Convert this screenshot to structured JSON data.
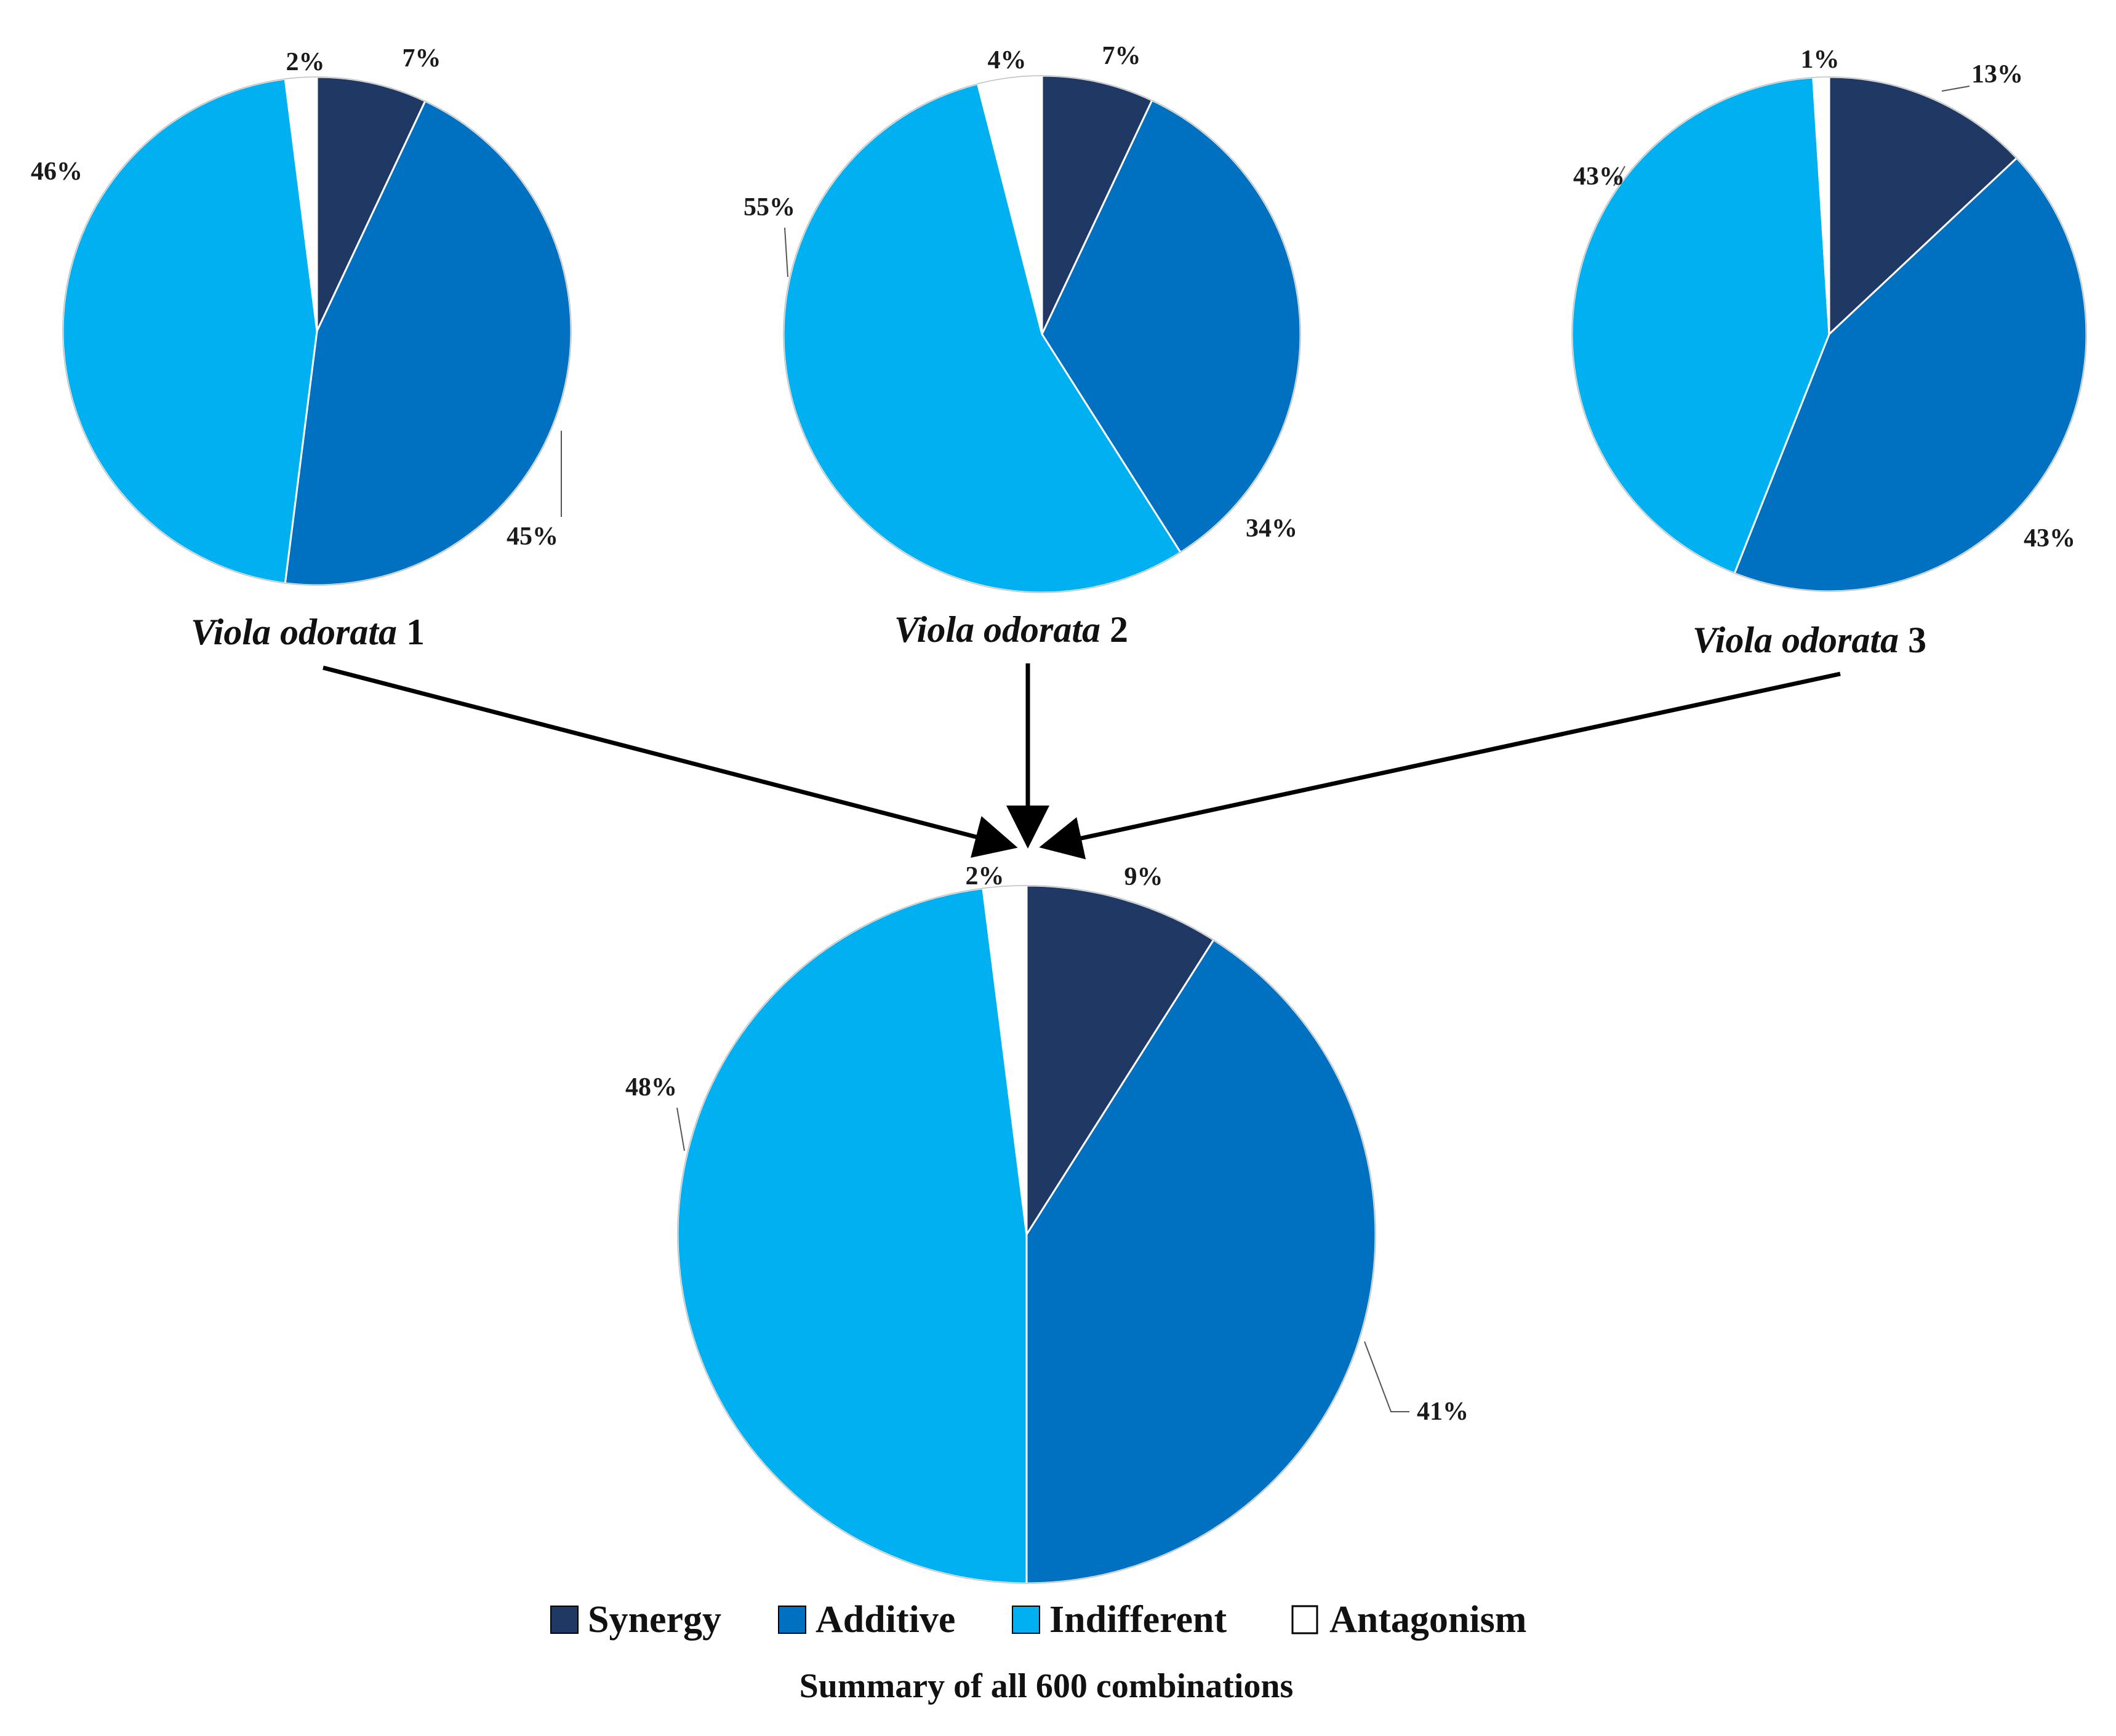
{
  "colors": {
    "Synergy": "#1f3864",
    "Additive": "#0070c0",
    "Indifferent": "#00b0f0",
    "Antagonism": "#ffffff"
  },
  "chart_data": [
    {
      "type": "pie",
      "title_italic": "Viola odorata",
      "title_suffix": " 1",
      "categories": [
        "Synergy",
        "Additive",
        "Indifferent",
        "Antagonism"
      ],
      "values": [
        7,
        45,
        46,
        2
      ],
      "labels": [
        "7%",
        "45%",
        "46%",
        "2%"
      ]
    },
    {
      "type": "pie",
      "title_italic": "Viola odorata",
      "title_suffix": " 2",
      "categories": [
        "Synergy",
        "Additive",
        "Indifferent",
        "Antagonism"
      ],
      "values": [
        7,
        34,
        55,
        4
      ],
      "labels": [
        "7%",
        "34%",
        "55%",
        "4%"
      ]
    },
    {
      "type": "pie",
      "title_italic": "Viola odorata",
      "title_suffix": " 3",
      "categories": [
        "Synergy",
        "Additive",
        "Indifferent",
        "Antagonism"
      ],
      "values": [
        13,
        43,
        43,
        1
      ],
      "labels": [
        "13%",
        "43%",
        "43%",
        "1%"
      ]
    },
    {
      "type": "pie",
      "title": "Summary of all 600 combinations",
      "categories": [
        "Synergy",
        "Additive",
        "Indifferent",
        "Antagonism"
      ],
      "values": [
        9,
        41,
        48,
        2
      ],
      "labels": [
        "9%",
        "41%",
        "48%",
        "2%"
      ]
    }
  ],
  "legend": {
    "position": "bottom",
    "items": [
      "Synergy",
      "Additive",
      "Indifferent",
      "Antagonism"
    ]
  }
}
